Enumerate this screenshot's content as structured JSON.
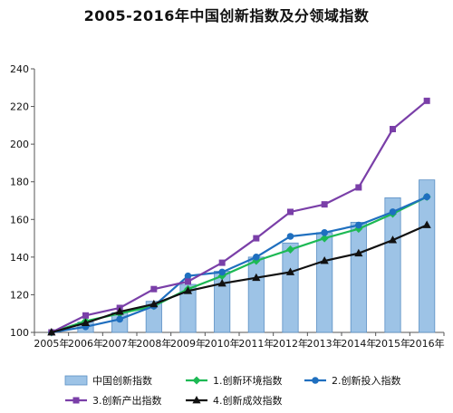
{
  "chart_data": {
    "type": "bar",
    "title": "2005-2016年中国创新指数及分领域指数",
    "xlabel": "",
    "ylabel": "",
    "ylim": [
      100,
      240
    ],
    "yticks": [
      100,
      120,
      140,
      160,
      180,
      200,
      220,
      240
    ],
    "grid": false,
    "legend_position": "bottom",
    "categories": [
      "2005年",
      "2006年",
      "2007年",
      "2008年",
      "2009年",
      "2010年",
      "2011年",
      "2012年",
      "2013年",
      "2014年",
      "2015年",
      "2016年"
    ],
    "bar_series": {
      "name": "中国创新指数",
      "color": "#9dc3e6",
      "values": [
        100,
        105.5,
        110.5,
        116.5,
        125.5,
        132.5,
        140,
        147.5,
        153,
        158.5,
        171.5,
        181
      ]
    },
    "series": [
      {
        "name": "1.创新环境指数",
        "color": "#1db954",
        "marker": "diamond",
        "values": [
          100,
          106,
          110,
          114,
          123,
          130,
          138,
          144,
          150,
          155,
          163,
          172
        ]
      },
      {
        "name": "2.创新投入指数",
        "color": "#1f6fbf",
        "marker": "circle",
        "values": [
          100,
          103,
          107,
          114,
          130,
          132,
          140,
          151,
          153,
          157,
          164,
          172
        ]
      },
      {
        "name": "3.创新产出指数",
        "color": "#7a3fa8",
        "marker": "square",
        "values": [
          100,
          109,
          113,
          123,
          127,
          137,
          150,
          164,
          168,
          177,
          208,
          223
        ]
      },
      {
        "name": "4.创新成效指数",
        "color": "#111111",
        "marker": "triangle",
        "values": [
          100,
          105,
          111,
          115,
          122,
          126,
          129,
          132,
          138,
          142,
          149,
          157
        ]
      }
    ],
    "legend": [
      {
        "name": "中国创新指数",
        "kind": "bar"
      },
      {
        "name": "1.创新环境指数",
        "kind": "line"
      },
      {
        "name": "2.创新投入指数",
        "kind": "line"
      },
      {
        "name": "3.创新产出指数",
        "kind": "line"
      },
      {
        "name": "4.创新成效指数",
        "kind": "line"
      }
    ]
  }
}
